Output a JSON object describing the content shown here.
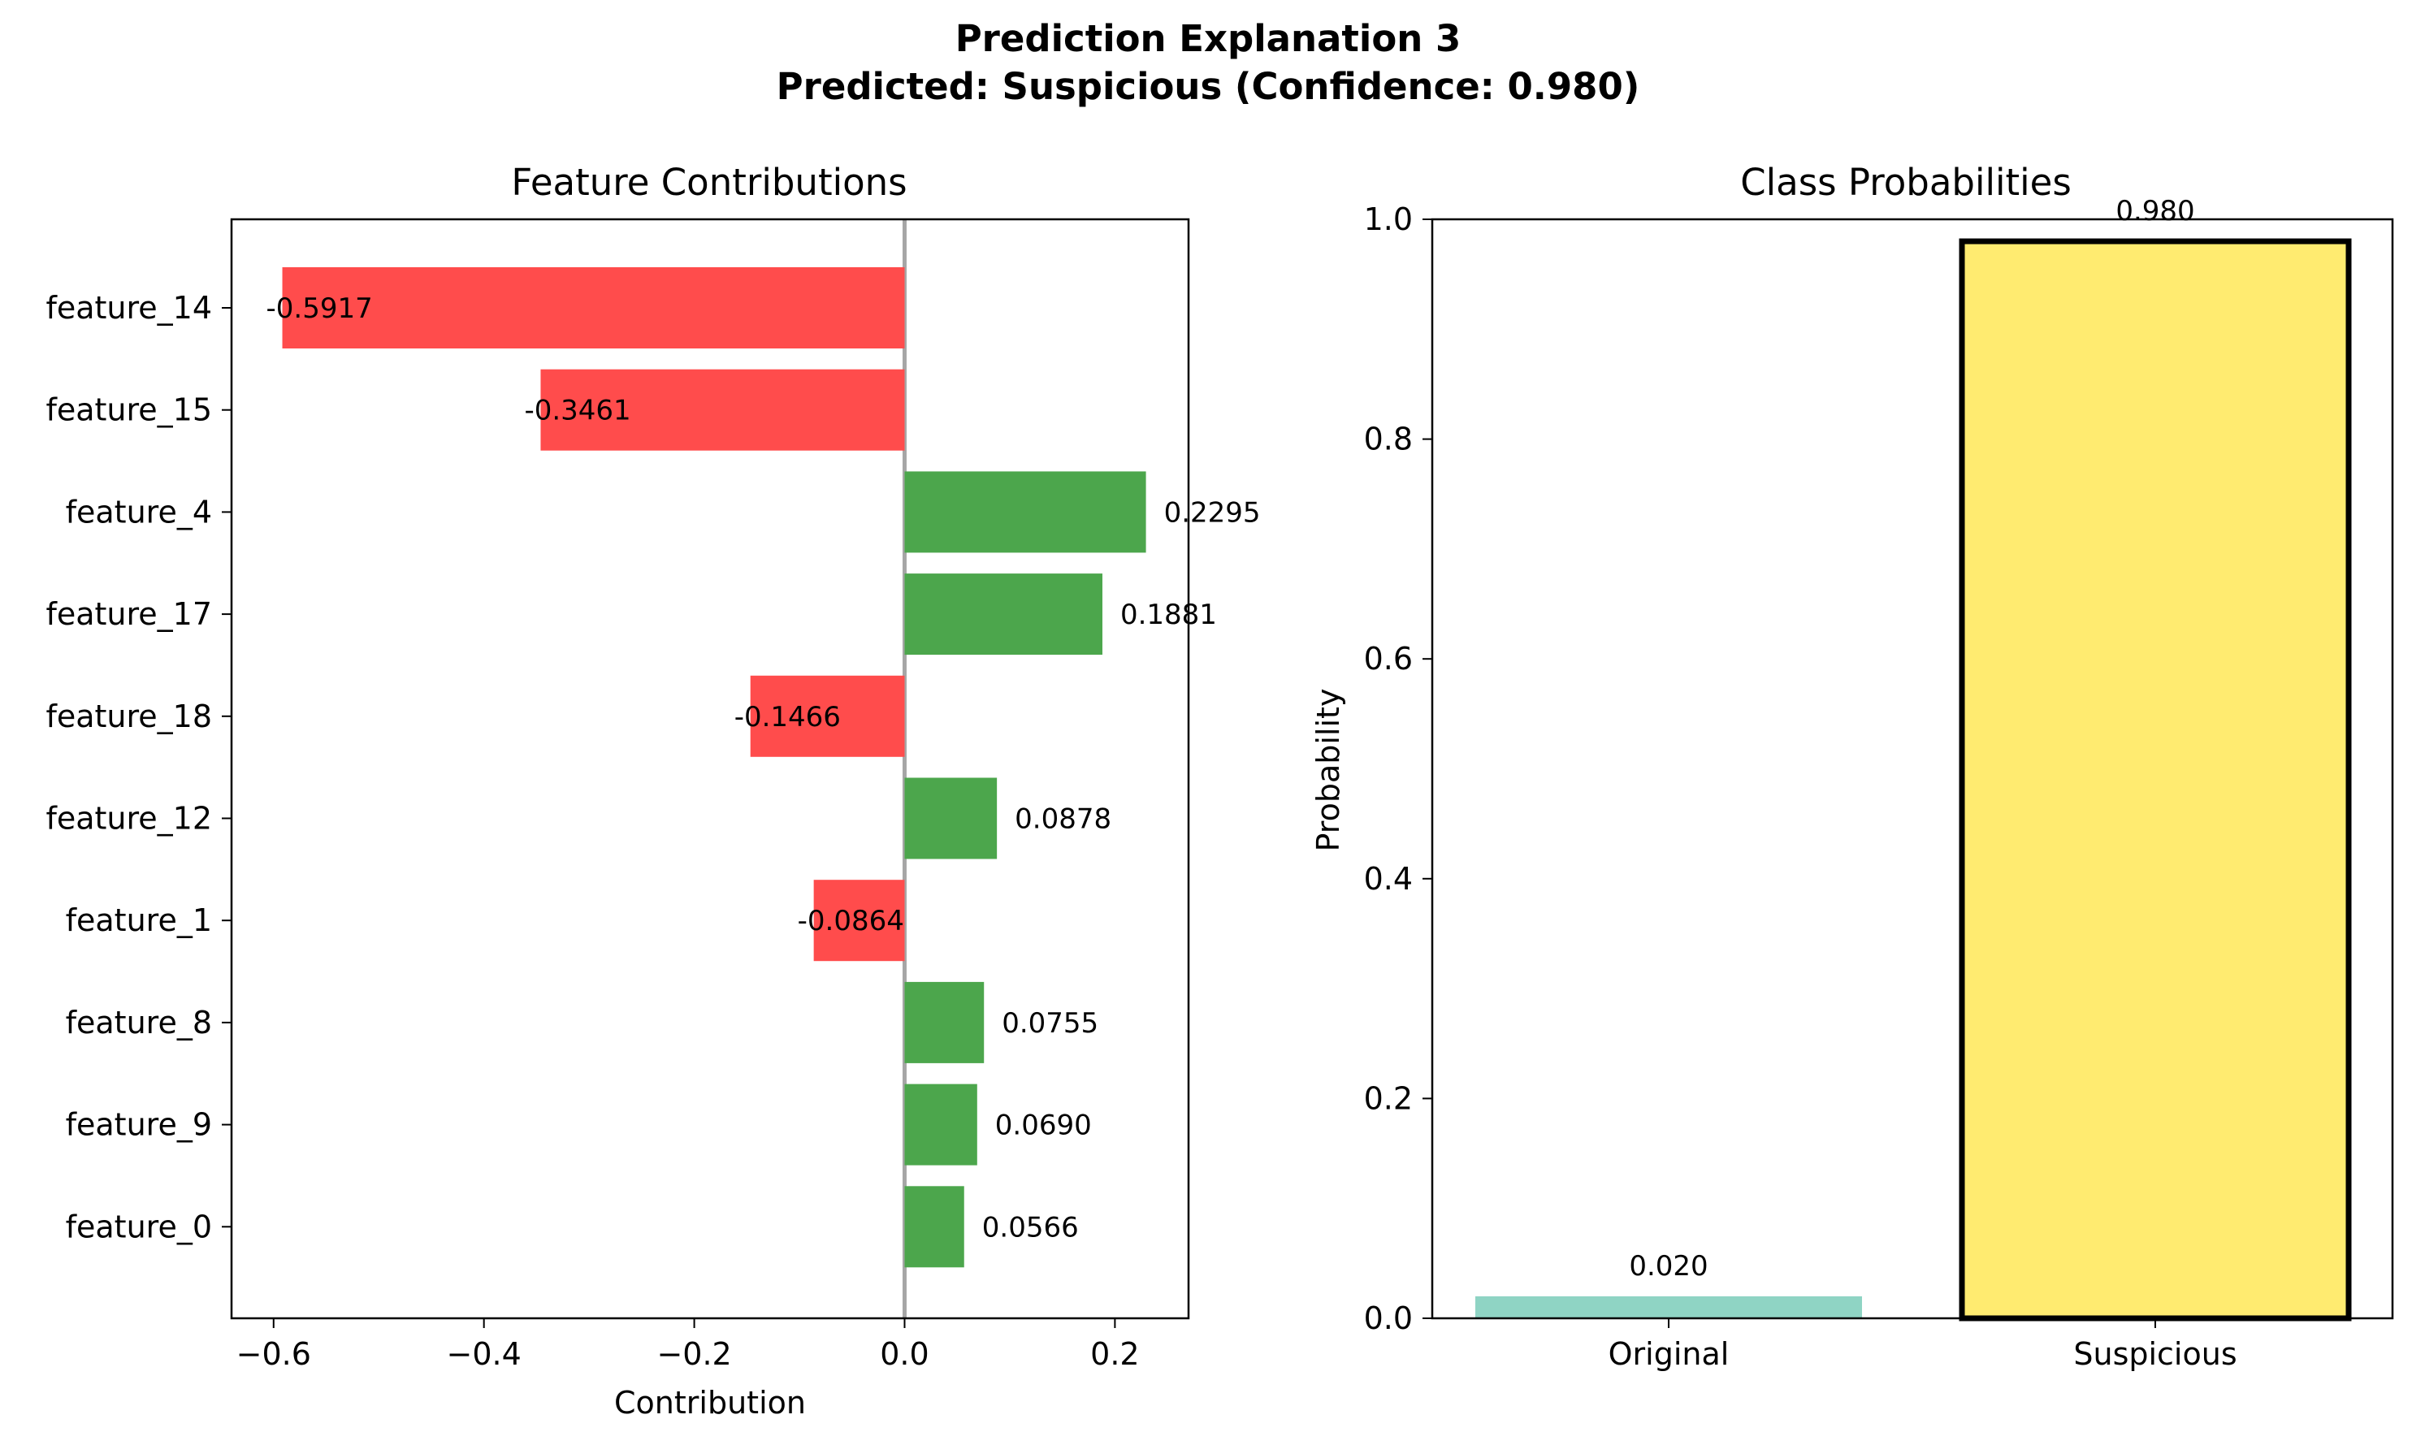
{
  "figure": {
    "title_line1": "Prediction Explanation 3",
    "title_line2": "Predicted: Suspicious (Confidence: 0.980)"
  },
  "chart_data": [
    {
      "type": "bar",
      "orientation": "horizontal",
      "title": "Feature Contributions",
      "xlabel": "Contribution",
      "ylabel": "",
      "xlim": [
        -0.64,
        0.27
      ],
      "xticks": [
        -0.6,
        -0.4,
        -0.2,
        0.0,
        0.2
      ],
      "xtick_labels": [
        "−0.6",
        "−0.4",
        "−0.2",
        "0.0",
        "0.2"
      ],
      "zero_line": true,
      "grid": false,
      "positive_color": "#4ca64c",
      "negative_color": "#ff4c4c",
      "categories": [
        "feature_14",
        "feature_15",
        "feature_4",
        "feature_17",
        "feature_18",
        "feature_12",
        "feature_1",
        "feature_8",
        "feature_9",
        "feature_0"
      ],
      "values": [
        -0.5917,
        -0.3461,
        0.2295,
        0.1881,
        -0.1466,
        0.0878,
        -0.0864,
        0.0755,
        0.069,
        0.0566
      ],
      "value_labels": [
        "-0.5917",
        "-0.3461",
        "0.2295",
        "0.1881",
        "-0.1466",
        "0.0878",
        "-0.0864",
        "0.0755",
        "0.0690",
        "0.0566"
      ]
    },
    {
      "type": "bar",
      "title": "Class Probabilities",
      "xlabel": "",
      "ylabel": "Probability",
      "ylim": [
        0,
        1.0
      ],
      "yticks": [
        0.0,
        0.2,
        0.4,
        0.6,
        0.8,
        1.0
      ],
      "ytick_labels": [
        "0.0",
        "0.2",
        "0.4",
        "0.6",
        "0.8",
        "1.0"
      ],
      "grid": false,
      "categories": [
        "Original",
        "Suspicious"
      ],
      "values": [
        0.02,
        0.98
      ],
      "value_labels": [
        "0.020",
        "0.980"
      ],
      "colors": [
        "#8fd4c4",
        "#ffeb70"
      ],
      "highlighted": "Suspicious"
    }
  ]
}
